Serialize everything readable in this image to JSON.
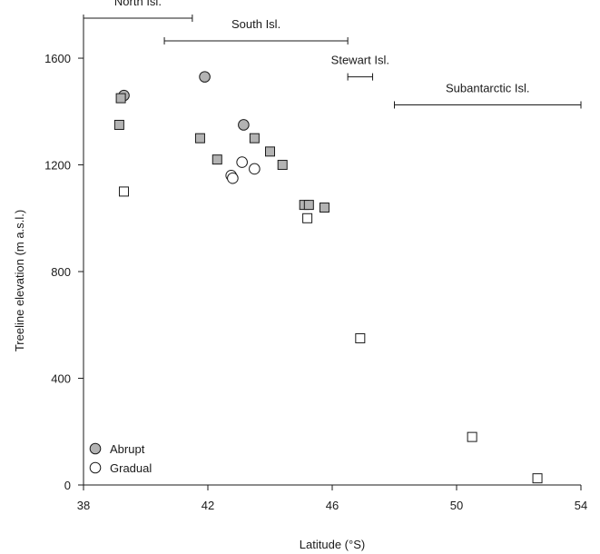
{
  "chart_data": {
    "type": "scatter",
    "xlabel": "Latitude (°S)",
    "ylabel": "Treeline elevation (m a.s.l.)",
    "xlim": [
      38,
      54
    ],
    "ylim": [
      0,
      1750
    ],
    "xticks": [
      38,
      42,
      46,
      50,
      54
    ],
    "yticks": [
      0,
      400,
      800,
      1200,
      1600
    ],
    "grid": false,
    "legend_position": "bottom-left",
    "colors": {
      "abrupt": "#b3b3b3",
      "gradual": "#ffffff",
      "outline": "#1a1a1a"
    },
    "legend": [
      {
        "label": "Abrupt",
        "marker": "circle",
        "fill": "abrupt"
      },
      {
        "label": "Gradual",
        "marker": "circle",
        "fill": "gradual"
      }
    ],
    "ranges": [
      {
        "label": "North Isl.",
        "x0": 38,
        "x1": 41.5,
        "y": 1750
      },
      {
        "label": "South Isl.",
        "x0": 40.6,
        "x1": 46.5,
        "y": 1665
      },
      {
        "label": "Stewart Isl.",
        "x0": 46.5,
        "x1": 47.3,
        "y": 1530
      },
      {
        "label": "Subantarctic Isl.",
        "x0": 48,
        "x1": 54,
        "y": 1425
      }
    ],
    "series": [
      {
        "marker": "circle",
        "fill": "abrupt",
        "points": [
          [
            39.3,
            1460
          ],
          [
            41.9,
            1530
          ],
          [
            43.15,
            1350
          ]
        ]
      },
      {
        "marker": "square",
        "fill": "abrupt",
        "points": [
          [
            39.2,
            1450
          ],
          [
            39.15,
            1350
          ],
          [
            41.75,
            1300
          ],
          [
            42.3,
            1220
          ],
          [
            43.5,
            1300
          ],
          [
            44.0,
            1250
          ],
          [
            44.4,
            1200
          ],
          [
            45.1,
            1050
          ],
          [
            45.25,
            1050
          ],
          [
            45.75,
            1040
          ]
        ]
      },
      {
        "marker": "circle",
        "fill": "gradual",
        "points": [
          [
            42.75,
            1160
          ],
          [
            42.8,
            1150
          ],
          [
            43.1,
            1210
          ],
          [
            43.5,
            1185
          ]
        ]
      },
      {
        "marker": "square",
        "fill": "gradual",
        "points": [
          [
            39.3,
            1100
          ],
          [
            45.2,
            1000
          ],
          [
            46.9,
            550
          ],
          [
            50.5,
            180
          ],
          [
            52.6,
            25
          ]
        ]
      }
    ]
  }
}
